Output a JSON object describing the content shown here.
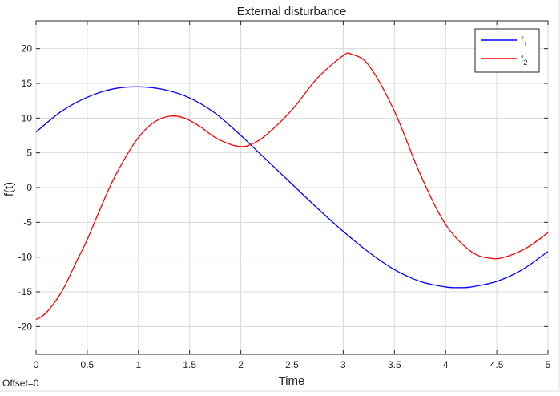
{
  "offset_label": "Offset=0",
  "chart_data": {
    "type": "line",
    "title": "External disturbance",
    "xlabel": "Time",
    "ylabel": "f(t)",
    "xlim": [
      0,
      5
    ],
    "ylim": [
      -24,
      24
    ],
    "xticks": [
      0,
      0.5,
      1,
      1.5,
      2,
      2.5,
      3,
      3.5,
      4,
      4.5,
      5
    ],
    "xtick_labels": [
      "0",
      "0.5",
      "1",
      "1.5",
      "2",
      "2.5",
      "3",
      "3.5",
      "4",
      "4.5",
      "5"
    ],
    "yticks": [
      -20,
      -15,
      -10,
      -5,
      0,
      5,
      10,
      15,
      20
    ],
    "ytick_labels": [
      "-20",
      "-15",
      "-10",
      "-5",
      "0",
      "5",
      "10",
      "15",
      "20"
    ],
    "grid": true,
    "legend_position": "top-right",
    "series": [
      {
        "name": "f1",
        "label_base": "f",
        "label_sub": "1",
        "color": "#0000ff",
        "x": [
          0,
          0.25,
          0.5,
          0.75,
          1.0,
          1.25,
          1.5,
          1.75,
          2.0,
          2.1,
          2.25,
          2.5,
          2.75,
          3.0,
          3.25,
          3.5,
          3.75,
          4.0,
          4.13,
          4.25,
          4.5,
          4.75,
          5.0
        ],
        "y": [
          8,
          11,
          13,
          14.2,
          14.5,
          14.1,
          12.9,
          10.7,
          7.5,
          6.1,
          4.0,
          0.5,
          -3.0,
          -6.3,
          -9.3,
          -11.8,
          -13.5,
          -14.3,
          -14.4,
          -14.3,
          -13.5,
          -11.8,
          -9.2
        ]
      },
      {
        "name": "f2",
        "label_base": "f",
        "label_sub": "2",
        "color": "#ff0000",
        "x": [
          0,
          0.1,
          0.25,
          0.4,
          0.5,
          0.6,
          0.75,
          0.9,
          1.0,
          1.1,
          1.2,
          1.32,
          1.45,
          1.6,
          1.75,
          1.9,
          2.0,
          2.1,
          2.25,
          2.5,
          2.75,
          3.0,
          3.08,
          3.25,
          3.5,
          3.75,
          4.0,
          4.25,
          4.45,
          4.6,
          4.8,
          5.0
        ],
        "y": [
          -19,
          -18,
          -15,
          -10.5,
          -7.5,
          -4,
          1,
          5,
          7.2,
          8.8,
          9.8,
          10.3,
          10,
          8.8,
          7.2,
          6.2,
          5.9,
          6.2,
          7.6,
          11.2,
          15.8,
          19,
          19.2,
          17.6,
          11,
          2,
          -5.3,
          -9.2,
          -10.2,
          -9.9,
          -8.6,
          -6.5
        ]
      }
    ]
  }
}
